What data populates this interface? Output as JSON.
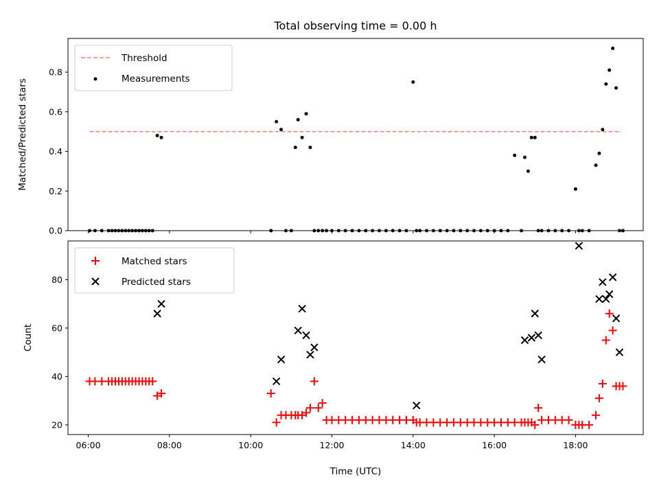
{
  "chart_data": [
    {
      "type": "scatter",
      "title": "Total observing time = 0.00 h",
      "xlabel": "",
      "ylabel": "Matched/Predicted stars",
      "xlim": [
        "05:30",
        "19:40"
      ],
      "ylim": [
        0,
        0.97
      ],
      "xticks": [],
      "yticks": [
        0.0,
        0.2,
        0.4,
        0.6,
        0.8
      ],
      "ytick_labels": [
        "0.0",
        "0.2",
        "0.4",
        "0.6",
        "0.8"
      ],
      "grid": false,
      "legend_position": "top-left",
      "series": [
        {
          "name": "Threshold",
          "kind": "line",
          "style": "dashed",
          "color": "#ff7f7f",
          "x": [
            "06:02",
            "19:08"
          ],
          "y": [
            0.5,
            0.5
          ]
        },
        {
          "name": "Measurements",
          "kind": "scatter",
          "marker": "dot",
          "color": "#000000",
          "x": [
            "06:02",
            "06:10",
            "06:20",
            "06:30",
            "06:35",
            "06:40",
            "06:45",
            "06:50",
            "06:55",
            "07:00",
            "07:05",
            "07:10",
            "07:15",
            "07:20",
            "07:25",
            "07:30",
            "07:35",
            "07:42",
            "07:48",
            "10:30",
            "10:38",
            "10:45",
            "10:52",
            "11:00",
            "11:06",
            "11:10",
            "11:16",
            "11:22",
            "11:28",
            "11:34",
            "11:40",
            "11:46",
            "11:52",
            "12:00",
            "12:10",
            "12:20",
            "12:30",
            "12:40",
            "12:50",
            "13:00",
            "13:10",
            "13:20",
            "13:30",
            "13:40",
            "13:50",
            "14:00",
            "14:05",
            "14:10",
            "14:20",
            "14:30",
            "14:40",
            "14:50",
            "15:00",
            "15:10",
            "15:20",
            "15:30",
            "15:40",
            "15:50",
            "16:00",
            "16:10",
            "16:20",
            "16:30",
            "16:40",
            "16:45",
            "16:50",
            "16:55",
            "17:00",
            "17:05",
            "17:10",
            "17:20",
            "17:30",
            "17:40",
            "17:50",
            "18:00",
            "18:05",
            "18:10",
            "18:20",
            "18:30",
            "18:35",
            "18:40",
            "18:45",
            "18:50",
            "18:55",
            "19:00",
            "19:05",
            "19:10"
          ],
          "y": [
            0.0,
            0.0,
            0.0,
            0.0,
            0.0,
            0.0,
            0.0,
            0.0,
            0.0,
            0.0,
            0.0,
            0.0,
            0.0,
            0.0,
            0.0,
            0.0,
            0.0,
            0.48,
            0.47,
            0.0,
            0.55,
            0.51,
            0.0,
            0.0,
            0.42,
            0.56,
            0.47,
            0.59,
            0.42,
            0.0,
            0.0,
            0.0,
            0.0,
            0.0,
            0.0,
            0.0,
            0.0,
            0.0,
            0.0,
            0.0,
            0.0,
            0.0,
            0.0,
            0.0,
            0.0,
            0.75,
            0.0,
            0.0,
            0.0,
            0.0,
            0.0,
            0.0,
            0.0,
            0.0,
            0.0,
            0.0,
            0.0,
            0.0,
            0.0,
            0.0,
            0.0,
            0.38,
            0.0,
            0.37,
            0.3,
            0.47,
            0.47,
            0.0,
            0.0,
            0.0,
            0.0,
            0.0,
            0.0,
            0.21,
            0.0,
            0.0,
            0.0,
            0.33,
            0.39,
            0.51,
            0.74,
            0.81,
            0.92,
            0.72,
            0.0,
            0.0
          ]
        }
      ]
    },
    {
      "type": "scatter",
      "title": "",
      "xlabel": "Time (UTC)",
      "ylabel": "Count",
      "xlim": [
        "05:30",
        "19:40"
      ],
      "ylim": [
        16,
        96
      ],
      "xticks": [
        "06:00",
        "08:00",
        "10:00",
        "12:00",
        "14:00",
        "16:00",
        "18:00"
      ],
      "yticks": [
        20,
        40,
        60,
        80
      ],
      "ytick_labels": [
        "20",
        "40",
        "60",
        "80"
      ],
      "grid": false,
      "legend_position": "top-left",
      "series": [
        {
          "name": "Matched stars",
          "kind": "scatter",
          "marker": "plus",
          "color": "#ff0000",
          "x": [
            "06:02",
            "06:10",
            "06:20",
            "06:30",
            "06:35",
            "06:40",
            "06:45",
            "06:50",
            "06:55",
            "07:00",
            "07:05",
            "07:10",
            "07:15",
            "07:20",
            "07:25",
            "07:30",
            "07:35",
            "07:42",
            "07:48",
            "10:30",
            "10:38",
            "10:45",
            "10:52",
            "11:00",
            "11:06",
            "11:10",
            "11:16",
            "11:22",
            "11:28",
            "11:34",
            "11:40",
            "11:46",
            "11:52",
            "12:00",
            "12:10",
            "12:20",
            "12:30",
            "12:40",
            "12:50",
            "13:00",
            "13:10",
            "13:20",
            "13:30",
            "13:40",
            "13:50",
            "14:00",
            "14:05",
            "14:10",
            "14:20",
            "14:30",
            "14:40",
            "14:50",
            "15:00",
            "15:10",
            "15:20",
            "15:30",
            "15:40",
            "15:50",
            "16:00",
            "16:10",
            "16:20",
            "16:30",
            "16:40",
            "16:45",
            "16:50",
            "16:55",
            "17:00",
            "17:05",
            "17:10",
            "17:20",
            "17:30",
            "17:40",
            "17:50",
            "18:00",
            "18:05",
            "18:10",
            "18:20",
            "18:30",
            "18:35",
            "18:40",
            "18:45",
            "18:50",
            "18:55",
            "19:00",
            "19:05",
            "19:10"
          ],
          "y": [
            38,
            38,
            38,
            38,
            38,
            38,
            38,
            38,
            38,
            38,
            38,
            38,
            38,
            38,
            38,
            38,
            38,
            32,
            33,
            33,
            21,
            24,
            24,
            24,
            24,
            24,
            24,
            25,
            27,
            38,
            27,
            29,
            22,
            22,
            22,
            22,
            22,
            22,
            22,
            22,
            22,
            22,
            22,
            22,
            22,
            22,
            21,
            21,
            21,
            21,
            21,
            21,
            21,
            21,
            21,
            21,
            21,
            21,
            21,
            21,
            21,
            21,
            21,
            21,
            21,
            21,
            20,
            27,
            22,
            22,
            22,
            22,
            22,
            20,
            20,
            20,
            20,
            24,
            31,
            37,
            55,
            66,
            59,
            36,
            36,
            36
          ]
        },
        {
          "name": "Predicted stars",
          "kind": "scatter",
          "marker": "x",
          "color": "#000000",
          "x": [
            "07:42",
            "07:48",
            "10:38",
            "10:45",
            "11:10",
            "11:16",
            "11:22",
            "11:28",
            "11:34",
            "14:05",
            "16:45",
            "16:55",
            "17:00",
            "17:05",
            "17:10",
            "18:05",
            "18:35",
            "18:40",
            "18:45",
            "18:50",
            "18:55",
            "19:00",
            "19:05"
          ],
          "y": [
            66,
            70,
            38,
            47,
            59,
            68,
            57,
            49,
            52,
            28,
            55,
            56,
            66,
            57,
            47,
            94,
            72,
            79,
            72,
            74,
            81,
            64,
            50
          ]
        }
      ]
    }
  ]
}
